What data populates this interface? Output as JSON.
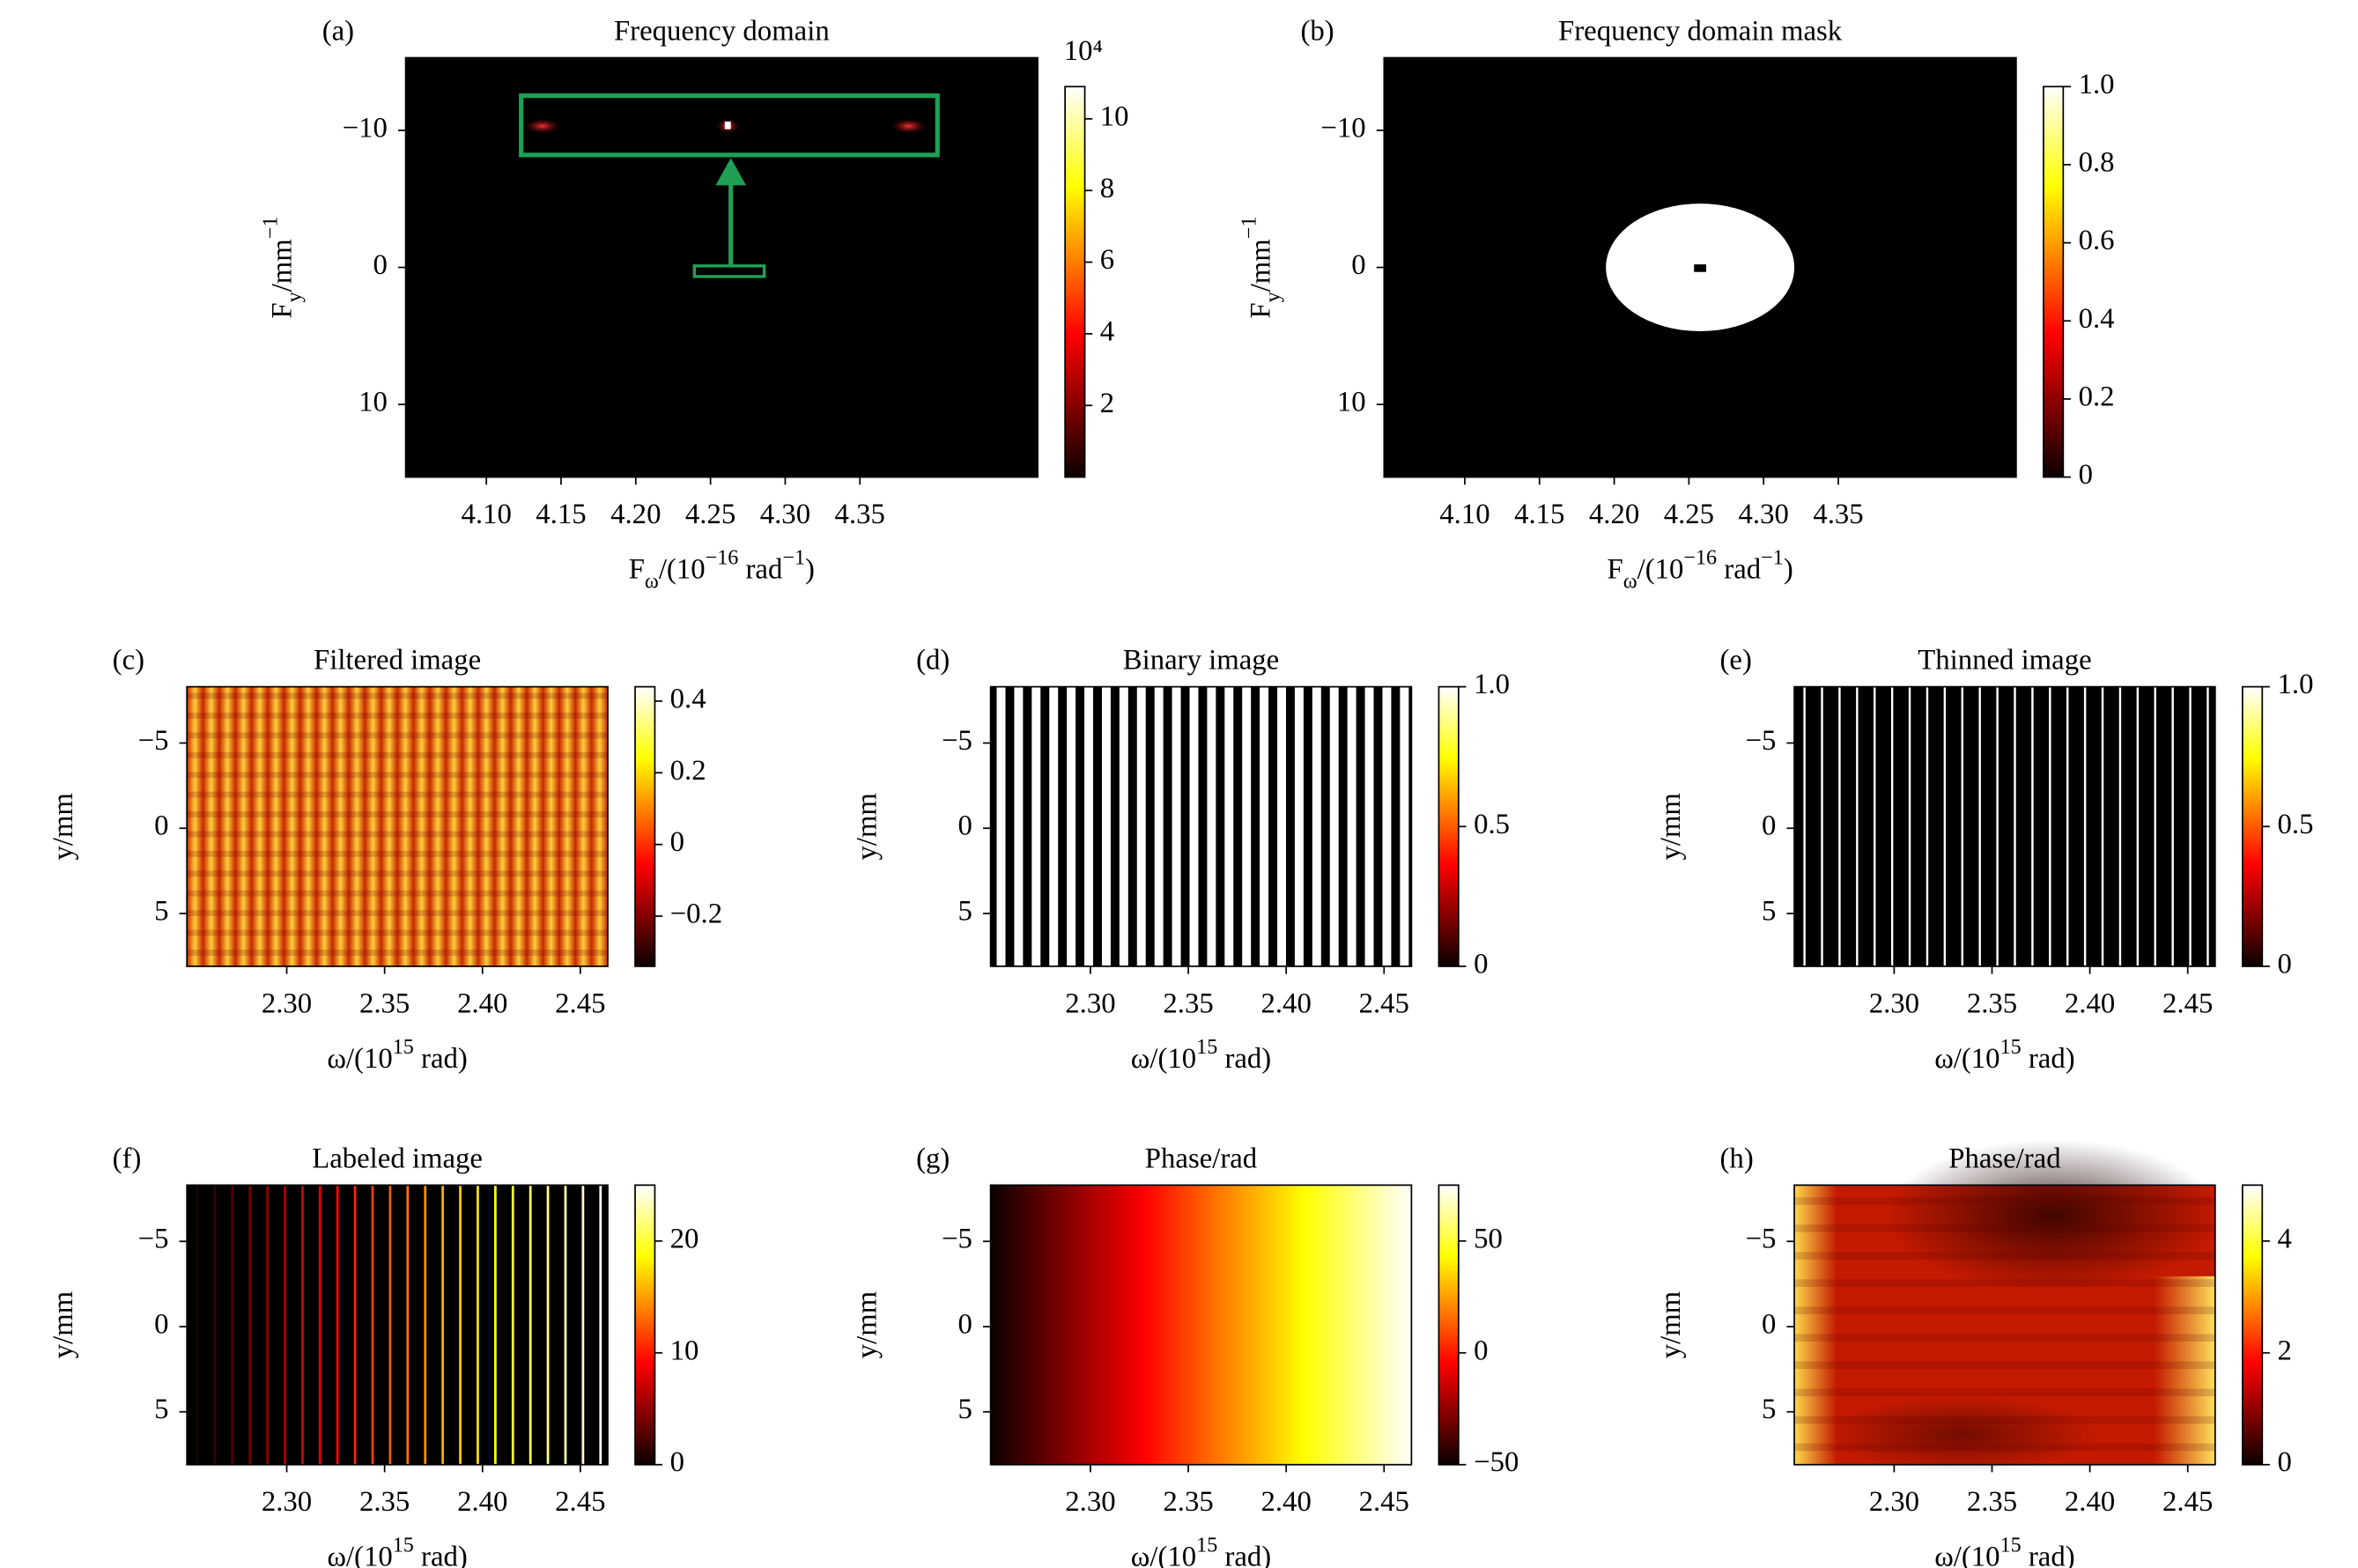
{
  "chart_data": [
    {
      "type": "heatmap",
      "panel": "(a)",
      "title": "Frequency domain",
      "xlabel": [
        {
          "text": "F"
        },
        {
          "text": "ω",
          "shift": "sub"
        },
        {
          "text": "/(10"
        },
        {
          "text": "−16",
          "shift": "sup"
        },
        {
          "text": " rad"
        },
        {
          "text": "−1",
          "shift": "sup"
        },
        {
          "text": ")"
        }
      ],
      "ylabel": [
        {
          "text": "F"
        },
        {
          "text": "y",
          "shift": "sub"
        },
        {
          "text": "/mm"
        },
        {
          "text": "−1",
          "shift": "sup"
        }
      ],
      "xlim": [
        4.046,
        4.469
      ],
      "ylim": [
        15.3,
        -15.3
      ],
      "xticks": [
        {
          "value": 4.1,
          "label": "4.10"
        },
        4.15,
        {
          "value": 4.2,
          "label": "4.20"
        },
        4.25,
        {
          "value": 4.3,
          "label": "4.30"
        },
        4.35
      ],
      "yticks": [
        {
          "value": -10,
          "label": "−10"
        },
        0,
        10
      ],
      "colorbar": {
        "label": "10⁴",
        "lim": [
          0,
          10.9
        ],
        "ticks": [
          2,
          4,
          6,
          8,
          10
        ]
      }
    },
    {
      "type": "heatmap",
      "panel": "(b)",
      "title": "Frequency domain mask",
      "xlabel": [
        {
          "text": "F"
        },
        {
          "text": "ω",
          "shift": "sub"
        },
        {
          "text": "/(10"
        },
        {
          "text": "−16",
          "shift": "sup"
        },
        {
          "text": " rad"
        },
        {
          "text": "−1",
          "shift": "sup"
        },
        {
          "text": ")"
        }
      ],
      "ylabel": [
        {
          "text": "F"
        },
        {
          "text": "y",
          "shift": "sub"
        },
        {
          "text": "/mm"
        },
        {
          "text": "−1",
          "shift": "sup"
        }
      ],
      "xlim": [
        4.046,
        4.469
      ],
      "ylim": [
        15.3,
        -15.3
      ],
      "xticks": [
        {
          "value": 4.1,
          "label": "4.10"
        },
        4.15,
        {
          "value": 4.2,
          "label": "4.20"
        },
        4.25,
        {
          "value": 4.3,
          "label": "4.30"
        },
        4.35
      ],
      "yticks": [
        {
          "value": -10,
          "label": "−10"
        },
        0,
        10
      ],
      "colorbar": {
        "lim": [
          0,
          1
        ],
        "ticks": [
          0,
          0.2,
          0.4,
          0.6,
          0.8,
          {
            "value": 1,
            "label": "1.0"
          }
        ]
      }
    },
    {
      "type": "heatmap",
      "panel": "(c)",
      "title": "Filtered image",
      "xlabel": [
        {
          "text": "ω/(10"
        },
        {
          "text": "15",
          "shift": "sup"
        },
        {
          "text": " rad)"
        }
      ],
      "ylabel": [
        {
          "text": "y/mm"
        }
      ],
      "xlim": [
        2.249,
        2.464
      ],
      "ylim": [
        8.1,
        -8.3
      ],
      "xticks": [
        {
          "value": 2.3,
          "label": "2.30"
        },
        2.35,
        {
          "value": 2.4,
          "label": "2.40"
        },
        2.45
      ],
      "yticks": [
        {
          "value": -5,
          "label": "−5"
        },
        0,
        5
      ],
      "colorbar": {
        "lim": [
          -0.34,
          0.44
        ],
        "ticks": [
          {
            "value": -0.2,
            "label": "−0.2"
          },
          0,
          0.2,
          0.4
        ]
      }
    },
    {
      "type": "heatmap",
      "panel": "(d)",
      "title": "Binary image",
      "xlabel": [
        {
          "text": "ω/(10"
        },
        {
          "text": "15",
          "shift": "sup"
        },
        {
          "text": " rad)"
        }
      ],
      "ylabel": [
        {
          "text": "y/mm"
        }
      ],
      "xlim": [
        2.249,
        2.464
      ],
      "ylim": [
        8.1,
        -8.3
      ],
      "xticks": [
        {
          "value": 2.3,
          "label": "2.30"
        },
        2.35,
        {
          "value": 2.4,
          "label": "2.40"
        },
        2.45
      ],
      "yticks": [
        {
          "value": -5,
          "label": "−5"
        },
        0,
        5
      ],
      "colorbar": {
        "lim": [
          0,
          1
        ],
        "ticks": [
          0,
          0.5,
          {
            "value": 1,
            "label": "1.0"
          }
        ]
      }
    },
    {
      "type": "heatmap",
      "panel": "(e)",
      "title": "Thinned image",
      "xlabel": [
        {
          "text": "ω/(10"
        },
        {
          "text": "15",
          "shift": "sup"
        },
        {
          "text": " rad)"
        }
      ],
      "ylabel": [
        {
          "text": "y/mm"
        }
      ],
      "xlim": [
        2.249,
        2.464
      ],
      "ylim": [
        8.1,
        -8.3
      ],
      "xticks": [
        {
          "value": 2.3,
          "label": "2.30"
        },
        2.35,
        {
          "value": 2.4,
          "label": "2.40"
        },
        2.45
      ],
      "yticks": [
        {
          "value": -5,
          "label": "−5"
        },
        0,
        5
      ],
      "colorbar": {
        "lim": [
          0,
          1
        ],
        "ticks": [
          0,
          0.5,
          {
            "value": 1,
            "label": "1.0"
          }
        ]
      }
    },
    {
      "type": "heatmap",
      "panel": "(f)",
      "title": "Labeled image",
      "xlabel": [
        {
          "text": "ω/(10"
        },
        {
          "text": "15",
          "shift": "sup"
        },
        {
          "text": " rad)"
        }
      ],
      "ylabel": [
        {
          "text": "y/mm"
        }
      ],
      "xlim": [
        2.249,
        2.464
      ],
      "ylim": [
        8.1,
        -8.3
      ],
      "xticks": [
        {
          "value": 2.3,
          "label": "2.30"
        },
        2.35,
        {
          "value": 2.4,
          "label": "2.40"
        },
        2.45
      ],
      "yticks": [
        {
          "value": -5,
          "label": "−5"
        },
        0,
        5
      ],
      "colorbar": {
        "lim": [
          0,
          25
        ],
        "ticks": [
          0,
          10,
          20
        ]
      }
    },
    {
      "type": "heatmap",
      "panel": "(g)",
      "title": "Phase/rad",
      "xlabel": [
        {
          "text": "ω/(10"
        },
        {
          "text": "15",
          "shift": "sup"
        },
        {
          "text": " rad)"
        }
      ],
      "ylabel": [
        {
          "text": "y/mm"
        }
      ],
      "xlim": [
        2.249,
        2.464
      ],
      "ylim": [
        8.1,
        -8.3
      ],
      "xticks": [
        {
          "value": 2.3,
          "label": "2.30"
        },
        2.35,
        {
          "value": 2.4,
          "label": "2.40"
        },
        2.45
      ],
      "yticks": [
        {
          "value": -5,
          "label": "−5"
        },
        0,
        5
      ],
      "colorbar": {
        "lim": [
          -50,
          75
        ],
        "ticks": [
          {
            "value": -50,
            "label": "−50"
          },
          0,
          50
        ]
      }
    },
    {
      "type": "heatmap",
      "panel": "(h)",
      "title": "Phase/rad",
      "xlabel": [
        {
          "text": "ω/(10"
        },
        {
          "text": "15",
          "shift": "sup"
        },
        {
          "text": " rad)"
        }
      ],
      "ylabel": [
        {
          "text": "y/mm"
        }
      ],
      "xlim": [
        2.249,
        2.464
      ],
      "ylim": [
        8.1,
        -8.3
      ],
      "xticks": [
        {
          "value": 2.3,
          "label": "2.30"
        },
        2.35,
        {
          "value": 2.4,
          "label": "2.40"
        },
        2.45
      ],
      "yticks": [
        {
          "value": -5,
          "label": "−5"
        },
        0,
        5
      ],
      "colorbar": {
        "lim": [
          0,
          5
        ],
        "ticks": [
          0,
          2,
          4
        ]
      }
    }
  ]
}
